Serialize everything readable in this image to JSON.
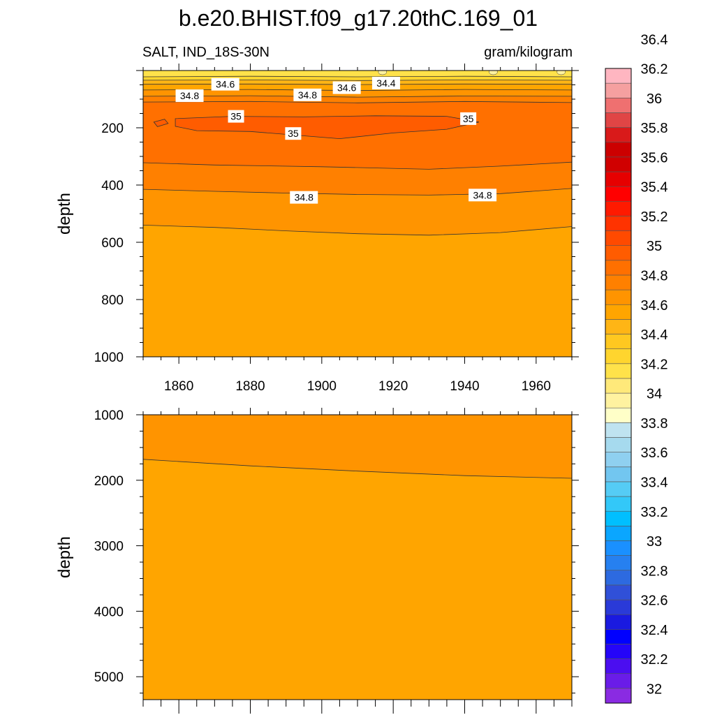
{
  "title": "b.e20.BHIST.f09_g17.20thC.169_01",
  "left_string": "SALT, IND_18S-30N",
  "right_string": "gram/kilogram",
  "chart_data": [
    {
      "type": "heatmap",
      "panel": "upper",
      "title": "b.e20.BHIST.f09_g17.20thC.169_01",
      "variable": "SALT, IND_18S-30N",
      "units": "gram/kilogram",
      "xlabel": "",
      "ylabel": "depth",
      "xlim": [
        1850,
        1970
      ],
      "ylim": [
        1000,
        0
      ],
      "x_ticks": [
        1860,
        1880,
        1900,
        1920,
        1940,
        1960
      ],
      "y_ticks": [
        200,
        400,
        600,
        800,
        1000
      ],
      "contour_interval": 0.1,
      "contour_lines": [
        {
          "level": 34.2,
          "points": [
            [
              1850,
              22
            ],
            [
              1880,
              20
            ],
            [
              1910,
              22
            ],
            [
              1940,
              20
            ],
            [
              1970,
              22
            ]
          ]
        },
        {
          "level": 34.4,
          "points": [
            [
              1850,
              34
            ],
            [
              1880,
              33
            ],
            [
              1910,
              35
            ],
            [
              1940,
              33
            ],
            [
              1970,
              34
            ]
          ]
        },
        {
          "level": 34.6,
          "points": [
            [
              1850,
              48
            ],
            [
              1880,
              47
            ],
            [
              1910,
              49
            ],
            [
              1940,
              47
            ],
            [
              1970,
              48
            ]
          ]
        },
        {
          "level": 34.7,
          "points": [
            [
              1850,
              68
            ],
            [
              1880,
              66
            ],
            [
              1910,
              70
            ],
            [
              1940,
              66
            ],
            [
              1970,
              68
            ]
          ]
        },
        {
          "level": 34.8,
          "points": [
            [
              1850,
              90
            ],
            [
              1880,
              88
            ],
            [
              1910,
              93
            ],
            [
              1940,
              89
            ],
            [
              1970,
              90
            ]
          ]
        },
        {
          "level": 34.9,
          "points": [
            [
              1850,
              110
            ],
            [
              1880,
              108
            ],
            [
              1910,
              113
            ],
            [
              1940,
              108
            ],
            [
              1970,
              112
            ]
          ]
        },
        {
          "level": 34.9,
          "points": [
            [
              1850,
              322
            ],
            [
              1870,
              330
            ],
            [
              1900,
              336
            ],
            [
              1930,
              345
            ],
            [
              1950,
              334
            ],
            [
              1970,
              320
            ]
          ]
        },
        {
          "level": 34.8,
          "points": [
            [
              1850,
              415
            ],
            [
              1870,
              422
            ],
            [
              1890,
              428
            ],
            [
              1910,
              433
            ],
            [
              1930,
              435
            ],
            [
              1950,
              430
            ],
            [
              1970,
              412
            ]
          ]
        },
        {
          "level": 34.7,
          "points": [
            [
              1850,
              540
            ],
            [
              1870,
              548
            ],
            [
              1890,
              560
            ],
            [
              1910,
              570
            ],
            [
              1930,
              575
            ],
            [
              1950,
              566
            ],
            [
              1970,
              545
            ]
          ]
        }
      ],
      "max_cores": [
        {
          "level": 35.0,
          "points": [
            [
              1859,
              168
            ],
            [
              1875,
              160
            ],
            [
              1895,
              162
            ],
            [
              1915,
              158
            ],
            [
              1935,
              160
            ],
            [
              1944,
              180
            ],
            [
              1935,
              205
            ],
            [
              1920,
              218
            ],
            [
              1905,
              238
            ],
            [
              1895,
              228
            ],
            [
              1880,
              213
            ],
            [
              1865,
              210
            ],
            [
              1859,
              195
            ],
            [
              1859,
              168
            ]
          ]
        },
        {
          "level": 35.0,
          "points": [
            [
              1853,
              180
            ],
            [
              1856,
              170
            ],
            [
              1857,
              185
            ],
            [
              1854,
              196
            ],
            [
              1853,
              180
            ]
          ]
        }
      ],
      "fresh_patches": [
        {
          "level": 34.0,
          "x": 1917,
          "y": 5
        },
        {
          "level": 34.0,
          "x": 1948,
          "y": 5
        },
        {
          "level": 34.0,
          "x": 1967,
          "y": 5
        }
      ],
      "labels": [
        {
          "text": "34.6",
          "x": 1873,
          "y": 48
        },
        {
          "text": "34.6",
          "x": 1907,
          "y": 60
        },
        {
          "text": "34.4",
          "x": 1918,
          "y": 44
        },
        {
          "text": "34.8",
          "x": 1863,
          "y": 88
        },
        {
          "text": "34.8",
          "x": 1896,
          "y": 85
        },
        {
          "text": "35",
          "x": 1876,
          "y": 160
        },
        {
          "text": "35",
          "x": 1892,
          "y": 220
        },
        {
          "text": "35",
          "x": 1941,
          "y": 168
        },
        {
          "text": "34.8",
          "x": 1895,
          "y": 443
        },
        {
          "text": "34.8",
          "x": 1945,
          "y": 435
        }
      ]
    },
    {
      "type": "heatmap",
      "panel": "lower",
      "xlabel": "",
      "ylabel": "depth",
      "xlim": [
        1850,
        1970
      ],
      "ylim": [
        5350,
        1000
      ],
      "y_ticks": [
        1000,
        2000,
        3000,
        4000,
        5000
      ],
      "deep_value_above": 34.7,
      "deep_value_below": 34.6,
      "contour_lines": [
        {
          "level": 34.7,
          "points": [
            [
              1850,
              1680
            ],
            [
              1880,
              1780
            ],
            [
              1910,
              1860
            ],
            [
              1940,
              1930
            ],
            [
              1970,
              1970
            ]
          ]
        }
      ]
    }
  ],
  "colorbar": {
    "colors": [
      "#8a2be2",
      "#6a1ce8",
      "#4b0ef0",
      "#2505f8",
      "#0000ff",
      "#1a1ae0",
      "#2a3ad8",
      "#3050d8",
      "#2d6ae0",
      "#2680f0",
      "#1a90ff",
      "#0aa6ff",
      "#00bfff",
      "#33c8f8",
      "#55ccf5",
      "#72c6f0",
      "#8fd0f0",
      "#a6daee",
      "#bfe3f0",
      "#ffffc8",
      "#fff2a0",
      "#ffe97a",
      "#ffe24a",
      "#ffd52e",
      "#ffc820",
      "#ffb515",
      "#ffa500",
      "#ff9400",
      "#ff8000",
      "#ff7000",
      "#ff5c00",
      "#ff4a00",
      "#ff3300",
      "#ff1a00",
      "#ff0000",
      "#e60000",
      "#d00000",
      "#cc0000",
      "#d91a1a",
      "#e04545",
      "#ef7070",
      "#f5a0a0",
      "#ffb6c1"
    ],
    "labels": [
      "32",
      "32.2",
      "32.4",
      "32.6",
      "32.8",
      "33",
      "33.2",
      "33.4",
      "33.6",
      "33.8",
      "34",
      "34.2",
      "34.4",
      "34.6",
      "34.8",
      "35",
      "35.2",
      "35.4",
      "35.6",
      "35.8",
      "36",
      "36.2",
      "36.4"
    ],
    "min": 32.0,
    "max": 36.6,
    "step": 0.1
  }
}
